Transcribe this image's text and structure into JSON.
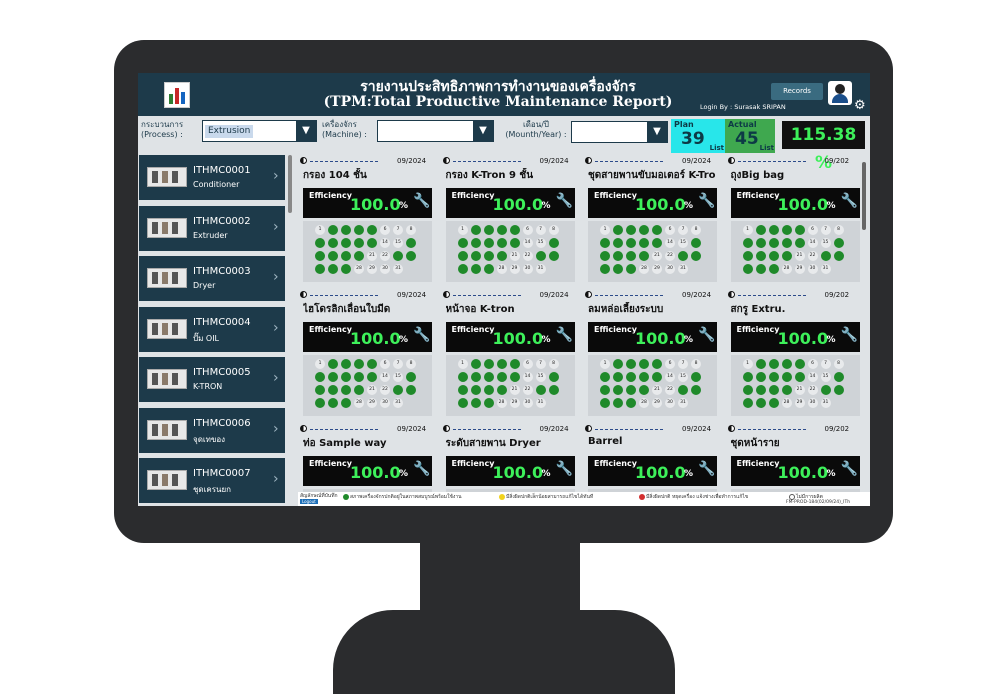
{
  "header": {
    "title_th": "รายงานประสิทธิภาพการทำงานของเครื่องจักร",
    "title_en": "(TPM:Total Productive Maintenance Report)",
    "records_label": "Records",
    "login_text": "Login By : Surasak SRIPAN"
  },
  "filters": {
    "process_label_th": "กระบวนการ",
    "process_label_en": "(Process) :",
    "process_value": "Extrusion",
    "machine_label_th": "เครื่องจักร",
    "machine_label_en": "(Machine) :",
    "machine_value": "",
    "month_label_th": "เดือน/ปี",
    "month_label_en": "(Mounth/Year) :",
    "month_value": ""
  },
  "kpi": {
    "plan_label": "Plan",
    "plan_value": "39",
    "plan_unit": "List",
    "actual_label": "Actual",
    "actual_value": "45",
    "actual_unit": "List",
    "percent": "115.38 %"
  },
  "machines": [
    {
      "code": "ITHMC0001",
      "name": "Conditioner"
    },
    {
      "code": "ITHMC0002",
      "name": "Extruder"
    },
    {
      "code": "ITHMC0003",
      "name": "Dryer"
    },
    {
      "code": "ITHMC0004",
      "name": "ปั๊ม OIL"
    },
    {
      "code": "ITHMC0005",
      "name": "K-TRON"
    },
    {
      "code": "ITHMC0006",
      "name": "จุดเทของ"
    },
    {
      "code": "ITHMC0007",
      "name": "ชุดเครนยก"
    }
  ],
  "cards": [
    {
      "name": "กรอง 104 ชั้น",
      "date": "09/2024",
      "eff_label": "Efficiency",
      "eff_value": "100.0",
      "eff_unit": "%"
    },
    {
      "name": "กรอง K-Tron 9 ชั้น",
      "date": "09/2024",
      "eff_label": "Efficiency",
      "eff_value": "100.0",
      "eff_unit": "%"
    },
    {
      "name": "ชุดสายพานขับมอเตอร์ K-Tron",
      "date": "09/2024",
      "eff_label": "Efficiency",
      "eff_value": "100.0",
      "eff_unit": "%"
    },
    {
      "name": "ถุงBig bag",
      "date": "09/202",
      "eff_label": "Efficiency",
      "eff_value": "100.0",
      "eff_unit": "%"
    },
    {
      "name": "ไฮโดรลิกเลื่อนใบมีด",
      "date": "09/2024",
      "eff_label": "Efficiency",
      "eff_value": "100.0",
      "eff_unit": "%"
    },
    {
      "name": "หน้าจอ K-tron",
      "date": "09/2024",
      "eff_label": "Efficiency",
      "eff_value": "100.0",
      "eff_unit": "%"
    },
    {
      "name": "ลมหล่อเลี้ยงระบบ",
      "date": "09/2024",
      "eff_label": "Efficiency",
      "eff_value": "100.0",
      "eff_unit": "%"
    },
    {
      "name": "สกรู Extru.",
      "date": "09/202",
      "eff_label": "Efficiency",
      "eff_value": "100.0",
      "eff_unit": "%"
    },
    {
      "name": "ท่อ Sample way",
      "date": "09/2024",
      "eff_label": "Efficiency",
      "eff_value": "100.0",
      "eff_unit": "%"
    },
    {
      "name": "ระดับสายพาน Dryer",
      "date": "09/2024",
      "eff_label": "Efficiency",
      "eff_value": "100.0",
      "eff_unit": "%"
    },
    {
      "name": "Barrel",
      "date": "09/2024",
      "eff_label": "Efficiency",
      "eff_value": "100.0",
      "eff_unit": "%"
    },
    {
      "name": "ชุดหน้าราย",
      "date": "09/202",
      "eff_label": "Efficiency",
      "eff_value": "100.0",
      "eff_unit": "%"
    }
  ],
  "calendar_days": [
    {
      "d": "1",
      "s": "w"
    },
    {
      "d": "",
      "s": "g"
    },
    {
      "d": "",
      "s": "g"
    },
    {
      "d": "",
      "s": "g"
    },
    {
      "d": "",
      "s": "g"
    },
    {
      "d": "6",
      "s": "w"
    },
    {
      "d": "7",
      "s": "w"
    },
    {
      "d": "8",
      "s": "w"
    },
    {
      "d": "",
      "s": "g"
    },
    {
      "d": "",
      "s": "g"
    },
    {
      "d": "",
      "s": "g"
    },
    {
      "d": "",
      "s": "g"
    },
    {
      "d": "",
      "s": "g"
    },
    {
      "d": "14",
      "s": "w"
    },
    {
      "d": "15",
      "s": "w"
    },
    {
      "d": "",
      "s": "g"
    },
    {
      "d": "",
      "s": "g"
    },
    {
      "d": "",
      "s": "g"
    },
    {
      "d": "",
      "s": "g"
    },
    {
      "d": "",
      "s": "g"
    },
    {
      "d": "21",
      "s": "w"
    },
    {
      "d": "22",
      "s": "w"
    },
    {
      "d": "",
      "s": "g"
    },
    {
      "d": "",
      "s": "g"
    },
    {
      "d": "",
      "s": "g"
    },
    {
      "d": "",
      "s": "g"
    },
    {
      "d": "",
      "s": "g"
    },
    {
      "d": "28",
      "s": "w"
    },
    {
      "d": "29",
      "s": "w"
    },
    {
      "d": "30",
      "s": "w"
    },
    {
      "d": "31",
      "s": "w"
    }
  ],
  "legend": {
    "title": "สัญลักษณ์ที่บันทึก",
    "green": "สภาพเครื่องจักรปกติอยู่ในสภาพสมบูรณ์พร้อมใช้งาน",
    "yellow": "มีสิ่งผิดปกติเล็กน้อยสามารถแก้ไขได้ทันที",
    "red": "มีสิ่งผิดปกติ หยุดเครื่อง แจ้งช่างเพื่อทำการแก้ไข",
    "none": "ไม่มีการผลิต",
    "logout": "Logout",
    "doc_code": "FM-PROD-184(02/09/24)_ITh"
  },
  "colors": {
    "header": "#1d3a4a",
    "plan": "#28e6ea",
    "actual": "#3fa84f",
    "ok": "#1f8a2a",
    "efficiency": "#3df05a"
  },
  "icons": {
    "settings": "gear-icon",
    "wrench": "wrench-icon",
    "chevron": "chevron-right-icon",
    "dropdown": "chevron-down-icon"
  }
}
